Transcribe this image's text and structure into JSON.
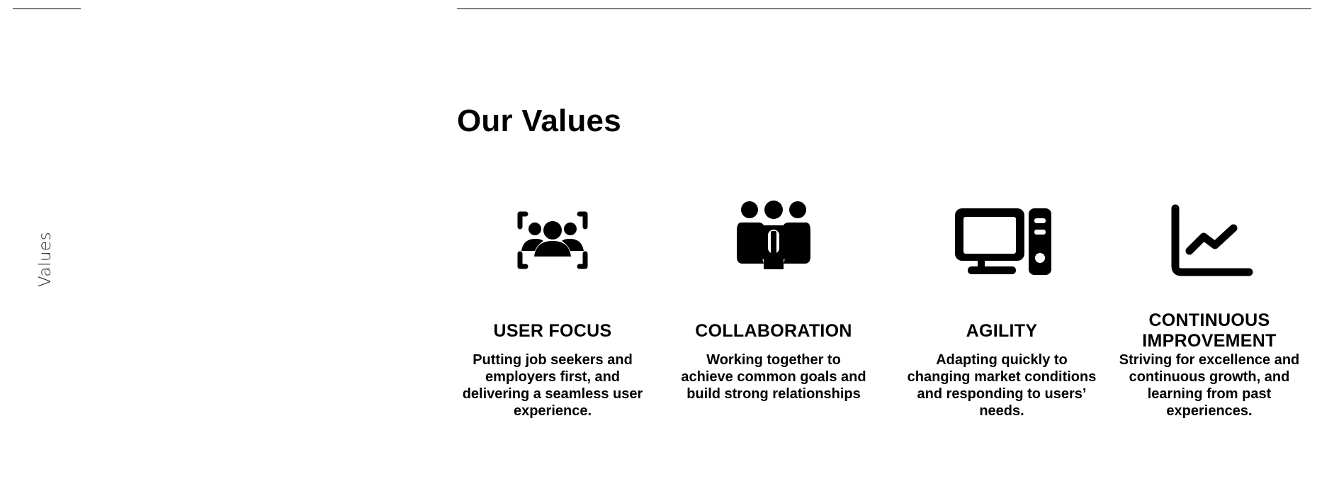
{
  "sidebar": {
    "section_label": "Values"
  },
  "main": {
    "title": "Our Values",
    "values": [
      {
        "icon": "user-focus-icon",
        "title": "USER FOCUS",
        "description": "Putting job seekers and\nemployers first, and\ndelivering a seamless user\nexperience."
      },
      {
        "icon": "team-icon",
        "title": "COLLABORATION",
        "description": "Working together to\nachieve common goals and\nbuild strong relationships"
      },
      {
        "icon": "desktop-computer-icon",
        "title": "AGILITY",
        "description": "Adapting quickly to\nchanging market conditions\nand responding to users’\nneeds."
      },
      {
        "icon": "line-chart-icon",
        "title": "CONTINUOUS\nIMPROVEMENT",
        "description": "Striving for excellence and\ncontinuous growth, and\nlearning from past\nexperiences."
      }
    ]
  },
  "colors": {
    "text": "#000000",
    "background": "#ffffff"
  }
}
